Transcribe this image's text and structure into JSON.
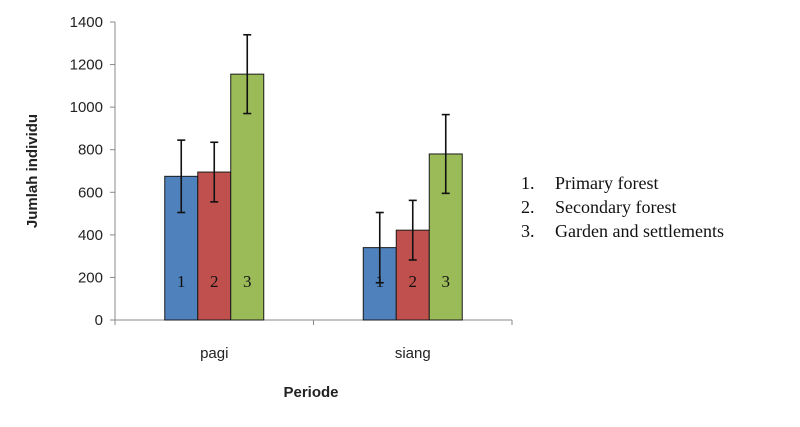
{
  "chart_data": {
    "type": "bar",
    "xlabel": "Periode",
    "ylabel": "Jumlah individu",
    "categories": [
      "pagi",
      "siang"
    ],
    "ylim": [
      0,
      1400
    ],
    "yticks": [
      0,
      200,
      400,
      600,
      800,
      1000,
      1200,
      1400
    ],
    "grid": false,
    "legend_position": "right",
    "series": [
      {
        "name": "Primary forest",
        "label": "1",
        "color": "#4f81bd",
        "values": [
          675,
          340
        ],
        "error": [
          170,
          165
        ]
      },
      {
        "name": "Secondary forest",
        "label": "2",
        "color": "#c0504d",
        "values": [
          695,
          422
        ],
        "error": [
          140,
          140
        ]
      },
      {
        "name": "Garden and settlements",
        "label": "3",
        "color": "#9bbb59",
        "values": [
          1155,
          780
        ],
        "error": [
          185,
          185
        ]
      }
    ],
    "legend": [
      {
        "marker": "1.",
        "text": "Primary forest"
      },
      {
        "marker": "2.",
        "text": "Secondary forest"
      },
      {
        "marker": "3.",
        "text": "Garden and settlements"
      }
    ]
  }
}
